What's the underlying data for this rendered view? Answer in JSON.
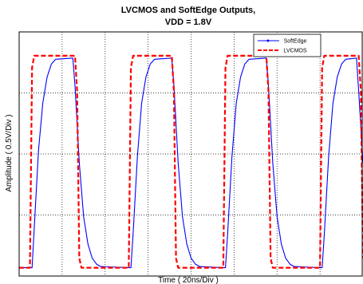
{
  "chart_data": {
    "type": "line",
    "title": [
      "LVCMOS and SoftEdge Outputs,",
      "VDD = 1.8V"
    ],
    "xlabel": "Time ( 20ns/Div )",
    "ylabel": "Amplitude ( 0.5V/Div )",
    "x_unit": "ns",
    "y_unit": "V",
    "xlim": [
      0,
      160
    ],
    "ylim": [
      -0.05,
      2.0
    ],
    "x_divisions": 8,
    "y_divisions": 4,
    "grid": "dotted",
    "tick_labels": false,
    "legend_position": "top-right",
    "series": [
      {
        "name": "SoftEdge",
        "color": "#0000ff",
        "style": "solid-with-markers",
        "points": [
          [
            0,
            0.02
          ],
          [
            6,
            0.02
          ],
          [
            7,
            0.35
          ],
          [
            9,
            1.0
          ],
          [
            11,
            1.4
          ],
          [
            13,
            1.62
          ],
          [
            15,
            1.73
          ],
          [
            17,
            1.77
          ],
          [
            25,
            1.78
          ],
          [
            26,
            1.55
          ],
          [
            28,
            0.9
          ],
          [
            30,
            0.45
          ],
          [
            32,
            0.22
          ],
          [
            34,
            0.1
          ],
          [
            36,
            0.05
          ],
          [
            38,
            0.03
          ],
          [
            52,
            0.02
          ],
          [
            53,
            0.3
          ],
          [
            55,
            0.95
          ],
          [
            57,
            1.4
          ],
          [
            59,
            1.62
          ],
          [
            61,
            1.73
          ],
          [
            63,
            1.77
          ],
          [
            71,
            1.78
          ],
          [
            72,
            1.55
          ],
          [
            74,
            0.9
          ],
          [
            76,
            0.45
          ],
          [
            78,
            0.22
          ],
          [
            80,
            0.1
          ],
          [
            82,
            0.05
          ],
          [
            84,
            0.03
          ],
          [
            96,
            0.02
          ],
          [
            97,
            0.3
          ],
          [
            99,
            0.95
          ],
          [
            101,
            1.4
          ],
          [
            103,
            1.62
          ],
          [
            105,
            1.73
          ],
          [
            107,
            1.77
          ],
          [
            115,
            1.78
          ],
          [
            116,
            1.55
          ],
          [
            118,
            0.9
          ],
          [
            120,
            0.45
          ],
          [
            122,
            0.22
          ],
          [
            124,
            0.1
          ],
          [
            126,
            0.05
          ],
          [
            128,
            0.03
          ],
          [
            141,
            0.02
          ],
          [
            142,
            0.3
          ],
          [
            144,
            0.95
          ],
          [
            146,
            1.4
          ],
          [
            148,
            1.62
          ],
          [
            150,
            1.73
          ],
          [
            152,
            1.77
          ],
          [
            157,
            1.78
          ],
          [
            158,
            1.5
          ],
          [
            160,
            0.9
          ]
        ]
      },
      {
        "name": "LVCMOS",
        "color": "#ff0000",
        "style": "dashed",
        "points": [
          [
            0,
            0.02
          ],
          [
            5,
            0.02
          ],
          [
            6,
            1.7
          ],
          [
            7,
            1.8
          ],
          [
            26,
            1.8
          ],
          [
            27,
            1.5
          ],
          [
            28,
            0.1
          ],
          [
            29,
            0.02
          ],
          [
            51,
            0.02
          ],
          [
            52,
            1.7
          ],
          [
            53,
            1.8
          ],
          [
            71,
            1.8
          ],
          [
            72,
            1.5
          ],
          [
            73,
            0.1
          ],
          [
            74,
            0.02
          ],
          [
            95,
            0.02
          ],
          [
            96,
            1.7
          ],
          [
            97,
            1.8
          ],
          [
            115,
            1.8
          ],
          [
            116,
            1.5
          ],
          [
            117,
            0.1
          ],
          [
            118,
            0.02
          ],
          [
            140,
            0.02
          ],
          [
            141,
            1.7
          ],
          [
            142,
            1.8
          ],
          [
            158,
            1.8
          ],
          [
            159,
            1.5
          ],
          [
            160,
            0.1
          ]
        ]
      }
    ]
  }
}
